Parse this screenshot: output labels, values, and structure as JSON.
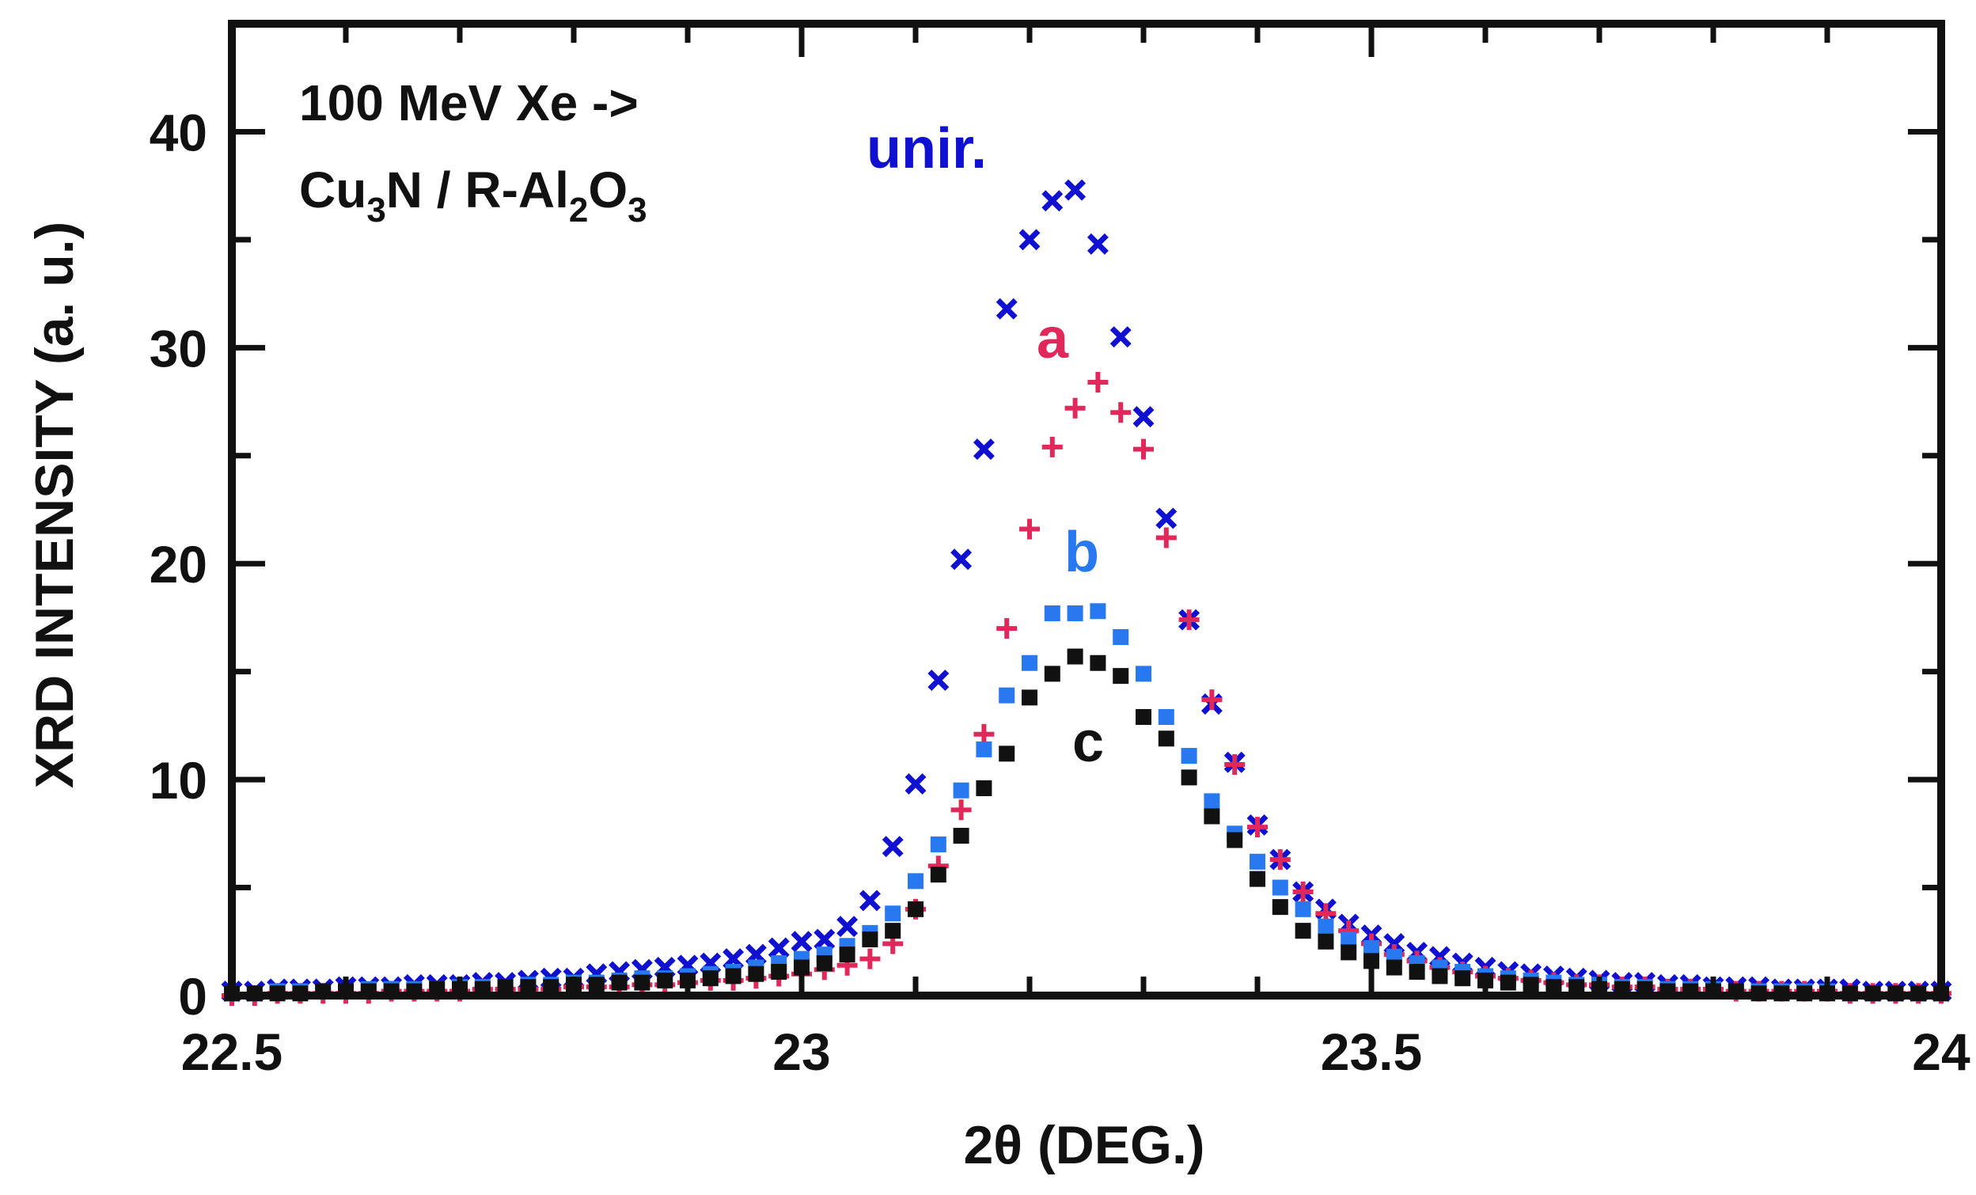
{
  "chart_data": {
    "type": "scatter",
    "title": "",
    "xlabel": "2θ (DEG.)",
    "ylabel": "XRD INTENSITY (a. u.)",
    "xlim": [
      22.5,
      24
    ],
    "ylim": [
      0,
      45
    ],
    "x_ticks": [
      "22.5",
      "23",
      "23.5",
      "24"
    ],
    "x_tick_values": [
      22.5,
      23,
      23.5,
      24
    ],
    "y_ticks": [
      "0",
      "10",
      "20",
      "30",
      "40"
    ],
    "y_tick_values": [
      0,
      10,
      20,
      30,
      40
    ],
    "annotation": {
      "line1": "100 MeV Xe ->",
      "line2_parts": [
        "Cu",
        "3",
        "N / R-Al",
        "2",
        "O",
        "3"
      ]
    },
    "series": [
      {
        "name": "unir.",
        "color": "#1010d0",
        "marker": "x",
        "x": [
          22.5,
          22.52,
          22.54,
          22.56,
          22.58,
          22.6,
          22.62,
          22.64,
          22.66,
          22.68,
          22.7,
          22.72,
          22.74,
          22.76,
          22.78,
          22.8,
          22.82,
          22.84,
          22.86,
          22.88,
          22.9,
          22.92,
          22.94,
          22.96,
          22.98,
          23.0,
          23.02,
          23.04,
          23.06,
          23.08,
          23.1,
          23.12,
          23.14,
          23.16,
          23.18,
          23.2,
          23.22,
          23.24,
          23.26,
          23.28,
          23.3,
          23.32,
          23.34,
          23.36,
          23.38,
          23.4,
          23.42,
          23.44,
          23.46,
          23.48,
          23.5,
          23.52,
          23.54,
          23.56,
          23.58,
          23.6,
          23.62,
          23.64,
          23.66,
          23.68,
          23.7,
          23.72,
          23.74,
          23.76,
          23.78,
          23.8,
          23.82,
          23.84,
          23.86,
          23.88,
          23.9,
          23.92,
          23.94,
          23.96,
          23.98,
          24.0
        ],
        "y": [
          0.2,
          0.2,
          0.3,
          0.3,
          0.3,
          0.4,
          0.4,
          0.4,
          0.5,
          0.5,
          0.5,
          0.6,
          0.6,
          0.7,
          0.8,
          0.8,
          1.0,
          1.1,
          1.2,
          1.3,
          1.4,
          1.5,
          1.7,
          1.9,
          2.2,
          2.5,
          2.6,
          3.2,
          4.4,
          6.9,
          9.8,
          14.6,
          20.2,
          25.3,
          31.8,
          35.0,
          36.8,
          37.3,
          34.8,
          30.5,
          26.8,
          22.1,
          17.4,
          13.5,
          10.8,
          7.9,
          6.3,
          4.8,
          4.0,
          3.3,
          2.8,
          2.4,
          2.0,
          1.8,
          1.5,
          1.3,
          1.1,
          1.0,
          0.9,
          0.8,
          0.7,
          0.6,
          0.6,
          0.5,
          0.5,
          0.4,
          0.4,
          0.4,
          0.3,
          0.3,
          0.3,
          0.3,
          0.2,
          0.2,
          0.2,
          0.2
        ]
      },
      {
        "name": "a",
        "color": "#e0285a",
        "marker": "+",
        "x": [
          22.5,
          22.52,
          22.54,
          22.56,
          22.58,
          22.6,
          22.62,
          22.64,
          22.66,
          22.68,
          22.7,
          22.72,
          22.74,
          22.76,
          22.78,
          22.8,
          22.82,
          22.84,
          22.86,
          22.88,
          22.9,
          22.92,
          22.94,
          22.96,
          22.98,
          23.0,
          23.02,
          23.04,
          23.06,
          23.08,
          23.1,
          23.12,
          23.14,
          23.16,
          23.18,
          23.2,
          23.22,
          23.24,
          23.26,
          23.28,
          23.3,
          23.32,
          23.34,
          23.36,
          23.38,
          23.4,
          23.42,
          23.44,
          23.46,
          23.48,
          23.5,
          23.52,
          23.54,
          23.56,
          23.58,
          23.6,
          23.62,
          23.64,
          23.66,
          23.68,
          23.7,
          23.72,
          23.74,
          23.76,
          23.78,
          23.8,
          23.82,
          23.84,
          23.86,
          23.88,
          23.9,
          23.92,
          23.94,
          23.96,
          23.98,
          24.0
        ],
        "y": [
          0.0,
          0.0,
          0.1,
          0.1,
          0.1,
          0.1,
          0.1,
          0.2,
          0.2,
          0.2,
          0.2,
          0.3,
          0.3,
          0.3,
          0.3,
          0.4,
          0.4,
          0.4,
          0.5,
          0.5,
          0.6,
          0.7,
          0.7,
          0.8,
          0.9,
          1.0,
          1.2,
          1.4,
          1.7,
          2.4,
          4.0,
          6.0,
          8.6,
          12.1,
          17.0,
          21.6,
          25.4,
          27.2,
          28.4,
          27.0,
          25.3,
          21.2,
          17.4,
          13.7,
          10.7,
          7.8,
          6.3,
          4.8,
          3.8,
          3.0,
          2.4,
          1.9,
          1.6,
          1.3,
          1.1,
          0.9,
          0.8,
          0.7,
          0.6,
          0.5,
          0.5,
          0.4,
          0.4,
          0.3,
          0.3,
          0.3,
          0.2,
          0.2,
          0.2,
          0.2,
          0.2,
          0.1,
          0.1,
          0.1,
          0.1,
          0.1
        ]
      },
      {
        "name": "b",
        "color": "#2878f0",
        "marker": "square",
        "x": [
          22.5,
          22.52,
          22.54,
          22.56,
          22.58,
          22.6,
          22.62,
          22.64,
          22.66,
          22.68,
          22.7,
          22.72,
          22.74,
          22.76,
          22.78,
          22.8,
          22.82,
          22.84,
          22.86,
          22.88,
          22.9,
          22.92,
          22.94,
          22.96,
          22.98,
          23.0,
          23.02,
          23.04,
          23.06,
          23.08,
          23.1,
          23.12,
          23.14,
          23.16,
          23.18,
          23.2,
          23.22,
          23.24,
          23.26,
          23.28,
          23.3,
          23.32,
          23.34,
          23.36,
          23.38,
          23.4,
          23.42,
          23.44,
          23.46,
          23.48,
          23.5,
          23.52,
          23.54,
          23.56,
          23.58,
          23.6,
          23.62,
          23.64,
          23.66,
          23.68,
          23.7,
          23.72,
          23.74,
          23.76,
          23.78,
          23.8,
          23.82,
          23.84,
          23.86,
          23.88,
          23.9,
          23.92,
          23.94,
          23.96,
          23.98,
          24.0
        ],
        "y": [
          0.1,
          0.1,
          0.2,
          0.2,
          0.2,
          0.2,
          0.3,
          0.3,
          0.3,
          0.3,
          0.4,
          0.4,
          0.4,
          0.5,
          0.5,
          0.6,
          0.6,
          0.7,
          0.8,
          0.8,
          0.9,
          1.0,
          1.1,
          1.3,
          1.5,
          1.7,
          1.9,
          2.3,
          2.9,
          3.8,
          5.3,
          7.0,
          9.5,
          11.4,
          13.9,
          15.4,
          17.7,
          17.7,
          17.8,
          16.6,
          14.9,
          12.9,
          11.1,
          9.0,
          7.5,
          6.2,
          5.0,
          4.0,
          3.2,
          2.6,
          2.2,
          1.8,
          1.5,
          1.3,
          1.1,
          0.9,
          0.8,
          0.7,
          0.6,
          0.5,
          0.5,
          0.4,
          0.4,
          0.3,
          0.3,
          0.3,
          0.2,
          0.2,
          0.2,
          0.2,
          0.2,
          0.1,
          0.1,
          0.1,
          0.1,
          0.1
        ]
      },
      {
        "name": "c",
        "color": "#111111",
        "marker": "square",
        "x": [
          22.5,
          22.52,
          22.54,
          22.56,
          22.58,
          22.6,
          22.62,
          22.64,
          22.66,
          22.68,
          22.7,
          22.72,
          22.74,
          22.76,
          22.78,
          22.8,
          22.82,
          22.84,
          22.86,
          22.88,
          22.9,
          22.92,
          22.94,
          22.96,
          22.98,
          23.0,
          23.02,
          23.04,
          23.06,
          23.08,
          23.1,
          23.12,
          23.14,
          23.16,
          23.18,
          23.2,
          23.22,
          23.24,
          23.26,
          23.28,
          23.3,
          23.32,
          23.34,
          23.36,
          23.38,
          23.4,
          23.42,
          23.44,
          23.46,
          23.48,
          23.5,
          23.52,
          23.54,
          23.56,
          23.58,
          23.6,
          23.62,
          23.64,
          23.66,
          23.68,
          23.7,
          23.72,
          23.74,
          23.76,
          23.78,
          23.8,
          23.82,
          23.84,
          23.86,
          23.88,
          23.9,
          23.92,
          23.94,
          23.96,
          23.98,
          24.0
        ],
        "y": [
          0.1,
          0.1,
          0.1,
          0.1,
          0.2,
          0.2,
          0.2,
          0.2,
          0.2,
          0.3,
          0.3,
          0.3,
          0.4,
          0.4,
          0.4,
          0.5,
          0.5,
          0.6,
          0.6,
          0.7,
          0.7,
          0.8,
          0.9,
          1.0,
          1.1,
          1.3,
          1.5,
          1.9,
          2.6,
          3.0,
          4.0,
          5.6,
          7.4,
          9.6,
          11.2,
          13.8,
          14.9,
          15.7,
          15.4,
          14.8,
          12.9,
          11.9,
          10.1,
          8.3,
          7.2,
          5.4,
          4.1,
          3.0,
          2.5,
          2.0,
          1.6,
          1.3,
          1.1,
          0.9,
          0.8,
          0.7,
          0.6,
          0.5,
          0.4,
          0.4,
          0.3,
          0.3,
          0.3,
          0.2,
          0.2,
          0.2,
          0.2,
          0.1,
          0.1,
          0.1,
          0.1,
          0.1,
          0.1,
          0.1,
          0.1,
          0.1
        ]
      }
    ]
  }
}
